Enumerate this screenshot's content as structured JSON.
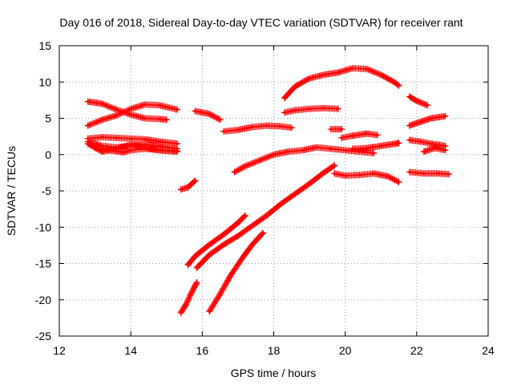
{
  "chart_data": {
    "type": "scatter",
    "title": "Day 016 of 2018, Sidereal Day-to-day VTEC variation (SDTVAR) for receiver rant",
    "xlabel": "GPS time / hours",
    "ylabel": "SDTVAR / TECUs",
    "xlim": [
      12,
      24
    ],
    "ylim": [
      -25,
      15
    ],
    "xticks": [
      12,
      14,
      16,
      18,
      20,
      22,
      24
    ],
    "yticks": [
      -25,
      -20,
      -15,
      -10,
      -5,
      0,
      5,
      10,
      15
    ],
    "grid": true,
    "grid_style": "dotted",
    "marker": "plus",
    "color": "#ff0000",
    "series": [
      {
        "x": [
          12.8,
          13.2,
          13.6,
          14.0,
          14.4,
          14.8,
          15.0
        ],
        "y": [
          7.3,
          7.0,
          6.2,
          5.5,
          5.0,
          4.9,
          4.8
        ]
      },
      {
        "x": [
          12.8,
          13.2,
          13.6,
          14.0,
          14.4,
          14.8,
          15.3
        ],
        "y": [
          4.0,
          4.8,
          5.4,
          6.3,
          6.9,
          6.8,
          6.2
        ]
      },
      {
        "x": [
          12.8,
          13.2,
          13.6,
          14.0,
          14.4,
          14.8,
          15.3
        ],
        "y": [
          2.2,
          2.4,
          2.3,
          2.2,
          2.1,
          1.8,
          1.5
        ]
      },
      {
        "x": [
          12.8,
          13.2,
          13.6,
          14.0,
          14.4,
          14.8,
          15.3
        ],
        "y": [
          1.8,
          1.2,
          1.0,
          1.2,
          1.4,
          1.2,
          0.8
        ]
      },
      {
        "x": [
          12.8,
          13.2,
          13.6,
          14.0,
          14.4,
          14.8,
          15.3
        ],
        "y": [
          1.5,
          0.4,
          0.8,
          1.4,
          1.0,
          0.6,
          0.5
        ]
      },
      {
        "x": [
          13.0,
          13.4,
          13.8,
          14.0,
          14.4,
          14.8,
          15.3
        ],
        "y": [
          1.0,
          0.6,
          0.3,
          0.6,
          0.8,
          0.6,
          0.4
        ]
      },
      {
        "x": [
          15.4,
          15.6,
          15.8
        ],
        "y": [
          -4.8,
          -4.5,
          -3.6
        ]
      },
      {
        "x": [
          15.4,
          15.55,
          15.7,
          15.85
        ],
        "y": [
          -21.8,
          -20.6,
          -19.0,
          -17.6
        ]
      },
      {
        "x": [
          15.6,
          15.8,
          16.2,
          16.6,
          17.0,
          17.2
        ],
        "y": [
          -15.2,
          -14.0,
          -12.4,
          -11.0,
          -9.4,
          -8.4
        ]
      },
      {
        "x": [
          15.85,
          16.2,
          16.6,
          17.0,
          17.4,
          17.8,
          18.2,
          18.6,
          19.0,
          19.4,
          19.7
        ],
        "y": [
          -15.6,
          -13.8,
          -12.4,
          -11.2,
          -9.8,
          -8.4,
          -6.8,
          -5.4,
          -4.0,
          -2.5,
          -1.5
        ]
      },
      {
        "x": [
          16.2,
          16.5,
          16.8,
          17.1,
          17.4,
          17.7
        ],
        "y": [
          -21.6,
          -19.2,
          -16.6,
          -14.4,
          -12.4,
          -10.8
        ]
      },
      {
        "x": [
          15.8,
          16.2,
          16.5
        ],
        "y": [
          6.0,
          5.6,
          4.8
        ]
      },
      {
        "x": [
          16.6,
          17.0,
          17.4,
          17.8,
          18.2,
          18.5
        ],
        "y": [
          3.2,
          3.4,
          3.8,
          4.0,
          3.9,
          3.7
        ]
      },
      {
        "x": [
          16.9,
          17.2,
          17.6,
          18.0,
          18.4,
          18.8,
          19.2,
          19.6,
          20.0,
          20.4,
          20.8
        ],
        "y": [
          -2.4,
          -1.6,
          -0.8,
          0.0,
          0.4,
          0.6,
          1.0,
          0.8,
          0.6,
          0.4,
          0.2
        ]
      },
      {
        "x": [
          18.3,
          18.6,
          19.0,
          19.4,
          19.8,
          20.2,
          20.6,
          21.0,
          21.4,
          21.5
        ],
        "y": [
          7.8,
          9.4,
          10.5,
          11.0,
          11.3,
          11.9,
          11.8,
          11.0,
          9.9,
          9.5
        ]
      },
      {
        "x": [
          18.3,
          18.6,
          19.0,
          19.4,
          19.8
        ],
        "y": [
          5.8,
          6.1,
          6.3,
          6.4,
          6.3
        ]
      },
      {
        "x": [
          19.6,
          19.9
        ],
        "y": [
          3.5,
          3.5
        ]
      },
      {
        "x": [
          19.9,
          20.2,
          20.6,
          20.9
        ],
        "y": [
          2.3,
          2.6,
          2.9,
          2.7
        ]
      },
      {
        "x": [
          20.2,
          20.6,
          21.0,
          21.4,
          21.5
        ],
        "y": [
          0.8,
          0.9,
          1.2,
          1.5,
          1.6
        ]
      },
      {
        "x": [
          19.7,
          20.0,
          20.4,
          20.8,
          21.2,
          21.5
        ],
        "y": [
          -2.6,
          -2.9,
          -2.8,
          -2.6,
          -3.0,
          -3.8
        ]
      },
      {
        "x": [
          21.8,
          22.0,
          22.3
        ],
        "y": [
          8.0,
          7.4,
          6.8
        ]
      },
      {
        "x": [
          21.8,
          22.1,
          22.4,
          22.8
        ],
        "y": [
          4.0,
          4.5,
          5.0,
          5.3
        ]
      },
      {
        "x": [
          21.8,
          22.1,
          22.4,
          22.8
        ],
        "y": [
          2.0,
          1.8,
          1.5,
          1.2
        ]
      },
      {
        "x": [
          22.2,
          22.5,
          22.8
        ],
        "y": [
          0.4,
          0.9,
          0.6
        ]
      },
      {
        "x": [
          21.8,
          22.2,
          22.6,
          22.9
        ],
        "y": [
          -2.4,
          -2.6,
          -2.6,
          -2.7
        ]
      }
    ]
  }
}
